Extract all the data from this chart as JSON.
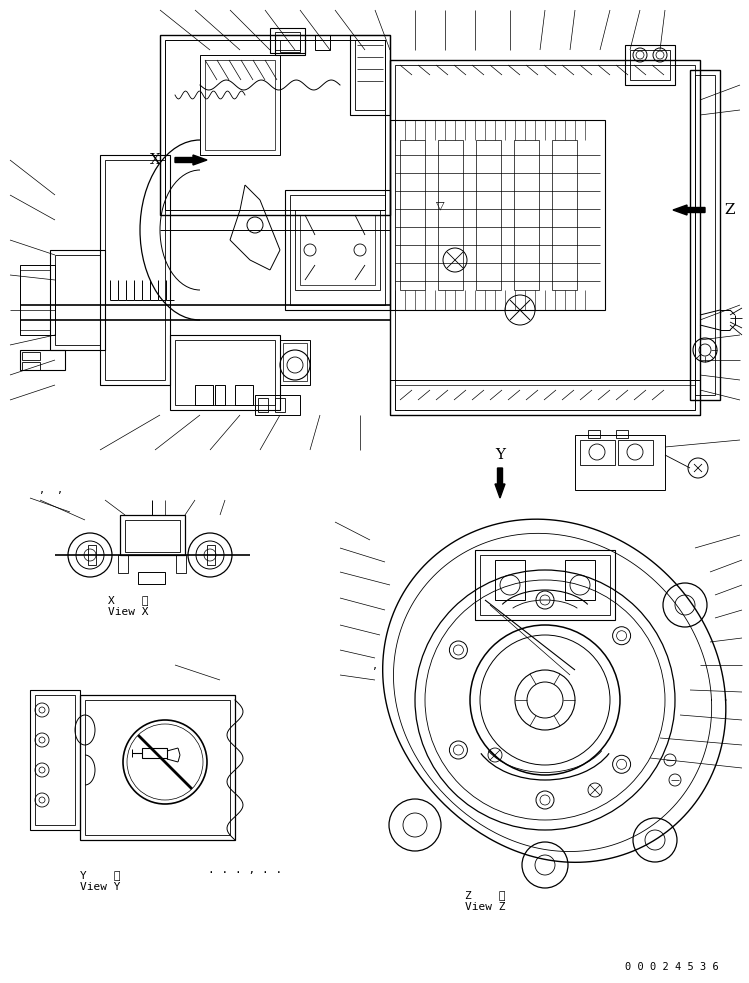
{
  "bg_color": "#ffffff",
  "line_color": "#000000",
  "fig_width": 7.49,
  "fig_height": 9.83,
  "dpi": 100,
  "part_number": "0 0 0 2 4 5 3 6",
  "view_x_label1": "X    視",
  "view_x_label2": "View X",
  "view_y_label1": "Y    視",
  "view_y_label2": "View Y",
  "view_z_label1": "Z    視",
  "view_z_label2": "View Z",
  "label_X": "X",
  "label_Z": "Z",
  "label_Y": "Y"
}
